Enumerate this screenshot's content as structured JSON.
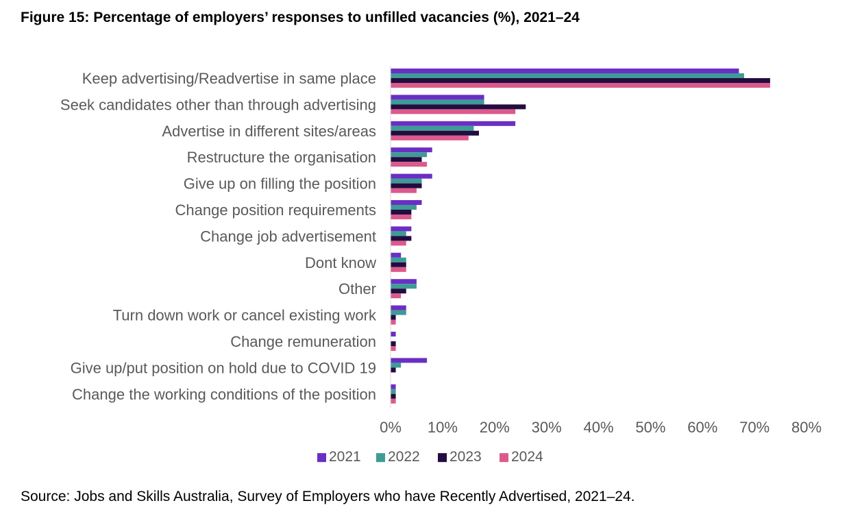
{
  "title": "Figure 15: Percentage of employers’ responses to unfilled vacancies (%), 2021–24",
  "source": "Source: Jobs and Skills Australia, Survey of Employers who have Recently Advertised, 2021–24.",
  "chart_data": {
    "type": "bar",
    "orientation": "horizontal",
    "title": "Figure 15: Percentage of employers’ responses to unfilled vacancies (%), 2021–24",
    "xlabel": "",
    "ylabel": "",
    "xlim": [
      0,
      80
    ],
    "x_ticks": [
      "0%",
      "10%",
      "20%",
      "30%",
      "40%",
      "50%",
      "60%",
      "70%",
      "80%"
    ],
    "grid": false,
    "legend_position": "bottom",
    "categories": [
      "Keep advertising/Readvertise in same place",
      "Seek candidates other than through advertising",
      "Advertise in different sites/areas",
      "Restructure the organisation",
      "Give up on filling the position",
      "Change position requirements",
      "Change job advertisement",
      "Dont know",
      "Other",
      "Turn down work or cancel existing work",
      "Change remuneration",
      "Give up/put position on hold due to COVID 19",
      "Change the working conditions of the position"
    ],
    "series": [
      {
        "name": "2021",
        "color": "#6A2FC4",
        "values": [
          67,
          18,
          24,
          8,
          8,
          6,
          4,
          2,
          5,
          3,
          1,
          7,
          1
        ]
      },
      {
        "name": "2022",
        "color": "#3E9B96",
        "values": [
          68,
          18,
          16,
          7,
          6,
          5,
          3,
          3,
          5,
          3,
          0,
          2,
          1
        ]
      },
      {
        "name": "2023",
        "color": "#230C40",
        "values": [
          73,
          26,
          17,
          6,
          6,
          4,
          4,
          3,
          3,
          1,
          1,
          1,
          1
        ]
      },
      {
        "name": "2024",
        "color": "#DB5A8C",
        "values": [
          73,
          24,
          15,
          7,
          5,
          4,
          3,
          3,
          2,
          1,
          1,
          0,
          1
        ]
      }
    ]
  }
}
